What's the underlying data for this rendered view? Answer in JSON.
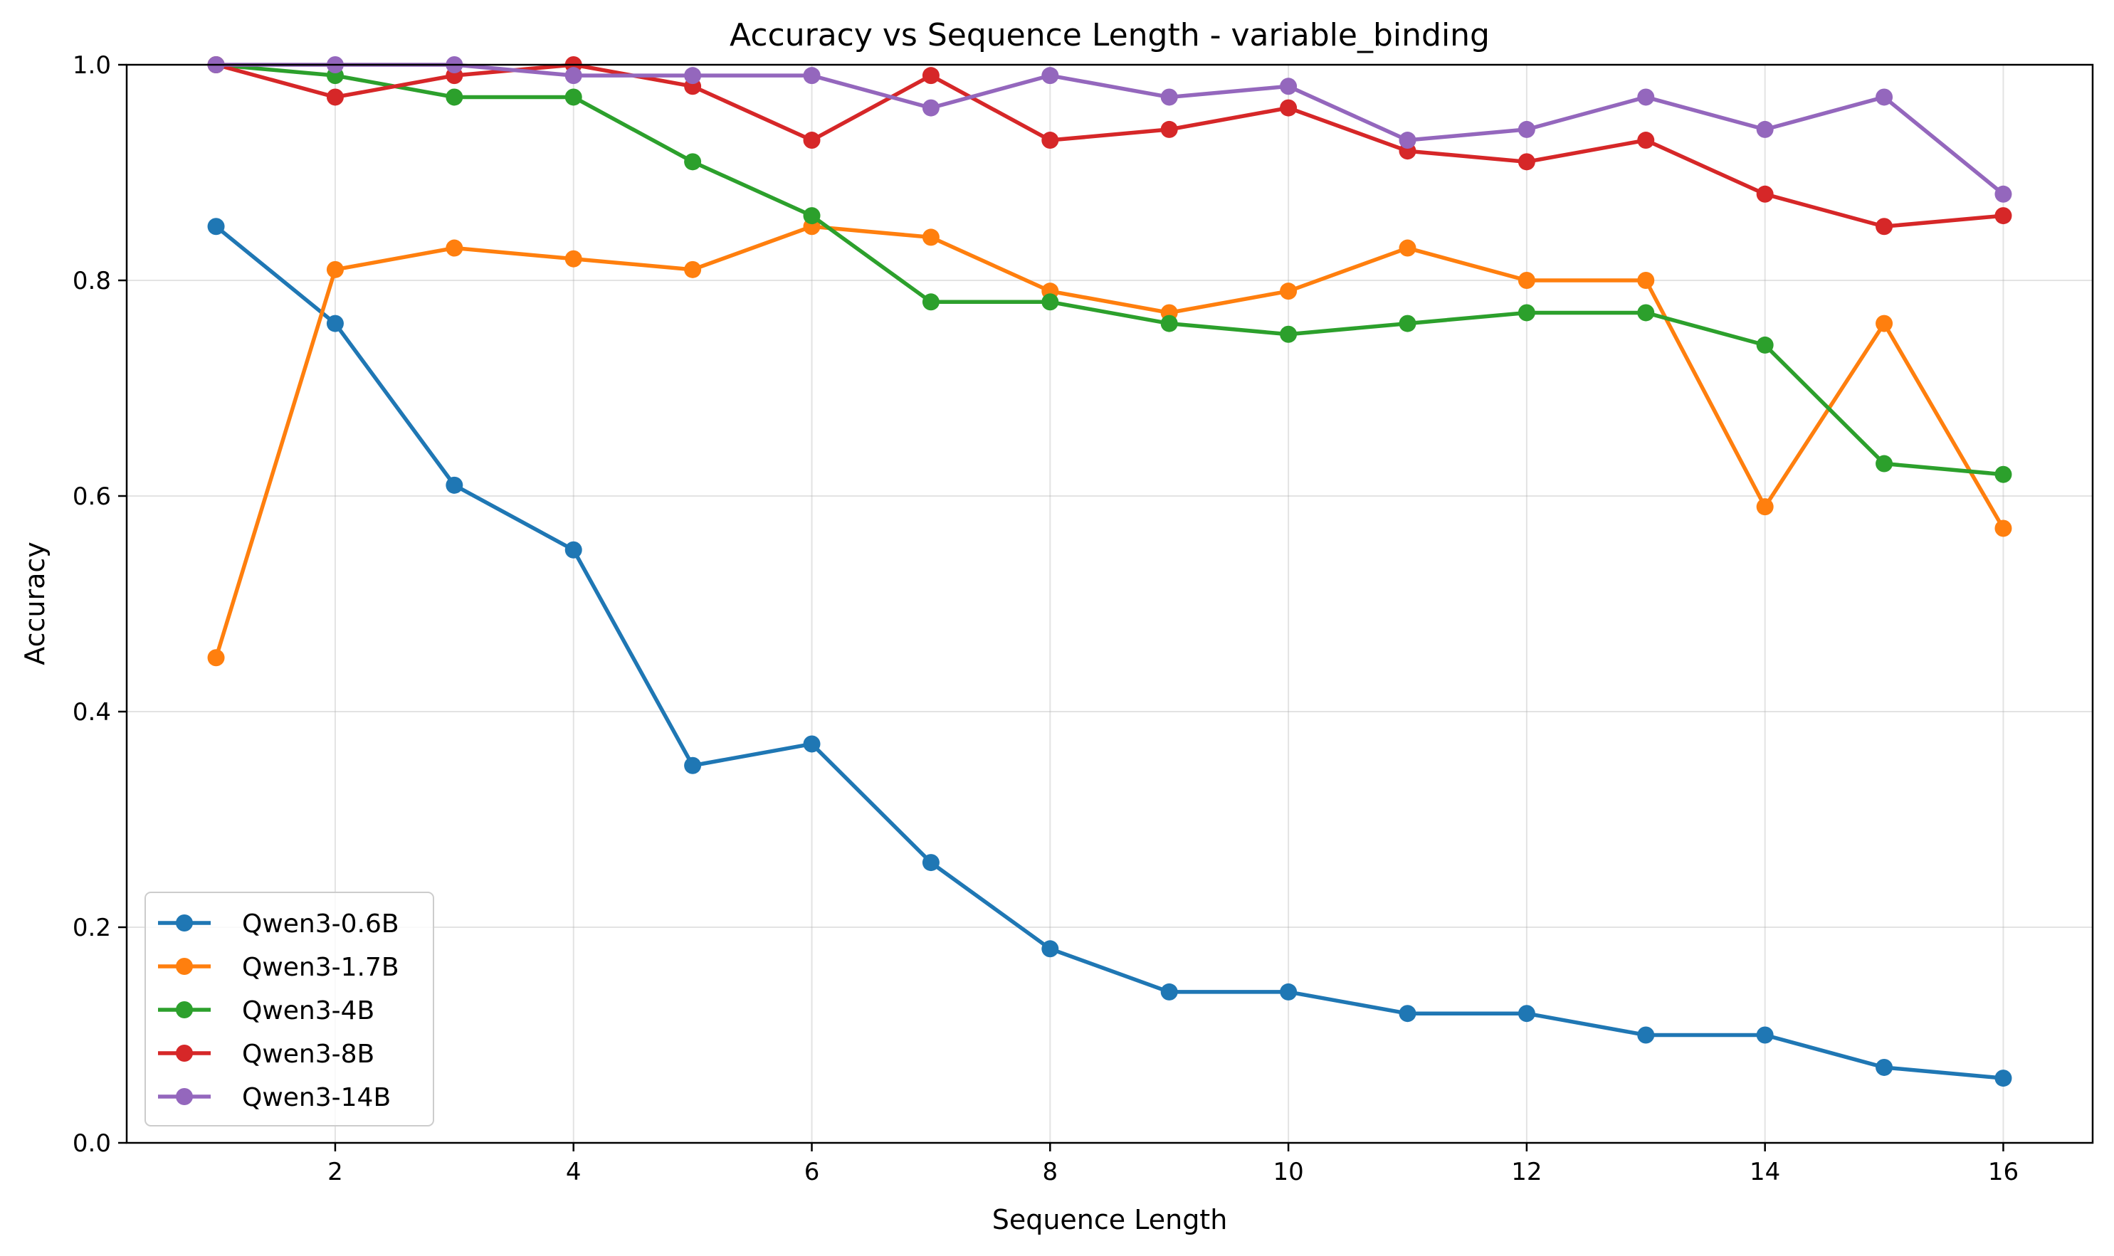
{
  "chart_data": {
    "type": "line",
    "title": "Accuracy vs Sequence Length - variable_binding",
    "xlabel": "Sequence Length",
    "ylabel": "Accuracy",
    "xlim": [
      0.25,
      16.75
    ],
    "ylim": [
      0,
      1.0
    ],
    "xticks": [
      2,
      4,
      6,
      8,
      10,
      12,
      14,
      16
    ],
    "yticks": [
      0.0,
      0.2,
      0.4,
      0.6,
      0.8,
      1.0
    ],
    "xtick_labels": [
      "2",
      "4",
      "6",
      "8",
      "10",
      "12",
      "14",
      "16"
    ],
    "ytick_labels": [
      "0.0",
      "0.2",
      "0.4",
      "0.6",
      "0.8",
      "1.0"
    ],
    "grid": true,
    "legend_position": "lower-left",
    "x": [
      1,
      2,
      3,
      4,
      5,
      6,
      7,
      8,
      9,
      10,
      11,
      12,
      13,
      14,
      15,
      16
    ],
    "series": [
      {
        "name": "Qwen3-0.6B",
        "color": "#1f77b4",
        "values": [
          0.85,
          0.76,
          0.61,
          0.55,
          0.35,
          0.37,
          0.26,
          0.18,
          0.14,
          0.14,
          0.12,
          0.12,
          0.1,
          0.1,
          0.07,
          0.06
        ]
      },
      {
        "name": "Qwen3-1.7B",
        "color": "#ff7f0e",
        "values": [
          0.45,
          0.81,
          0.83,
          0.82,
          0.81,
          0.85,
          0.84,
          0.79,
          0.77,
          0.79,
          0.83,
          0.8,
          0.8,
          0.59,
          0.76,
          0.57
        ]
      },
      {
        "name": "Qwen3-4B",
        "color": "#2ca02c",
        "values": [
          1.0,
          0.99,
          0.97,
          0.97,
          0.91,
          0.86,
          0.78,
          0.78,
          0.76,
          0.75,
          0.76,
          0.77,
          0.77,
          0.74,
          0.63,
          0.62
        ]
      },
      {
        "name": "Qwen3-8B",
        "color": "#d62728",
        "values": [
          1.0,
          0.97,
          0.99,
          1.0,
          0.98,
          0.93,
          0.99,
          0.93,
          0.94,
          0.96,
          0.92,
          0.91,
          0.93,
          0.88,
          0.85,
          0.86
        ]
      },
      {
        "name": "Qwen3-14B",
        "color": "#9467bd",
        "values": [
          1.0,
          1.0,
          1.0,
          0.99,
          0.99,
          0.99,
          0.96,
          0.99,
          0.97,
          0.98,
          0.93,
          0.94,
          0.97,
          0.94,
          0.97,
          0.88
        ]
      }
    ]
  }
}
